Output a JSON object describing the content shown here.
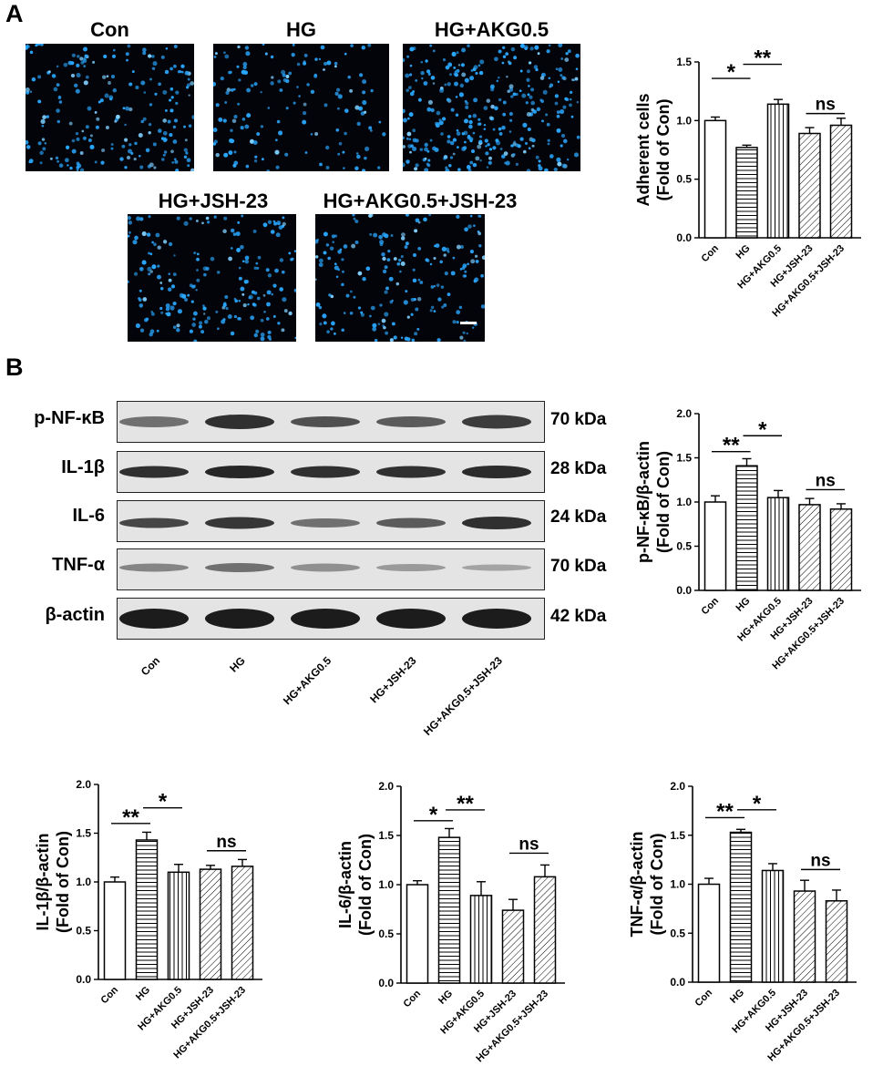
{
  "panel_a": {
    "letter": "A",
    "image_titles": [
      "Con",
      "HG",
      "HG+AKG0.5",
      "HG+JSH-23",
      "HG+AKG0.5+JSH-23"
    ]
  },
  "panel_b": {
    "letter": "B",
    "blot_rows": [
      {
        "protein": "p-NF-κB",
        "kda": "70 kDa"
      },
      {
        "protein": "IL-1β",
        "kda": "28 kDa"
      },
      {
        "protein": "IL-6",
        "kda": "24 kDa"
      },
      {
        "protein": "TNF-α",
        "kda": "70 kDa"
      },
      {
        "protein": "β-actin",
        "kda": "42 kDa"
      }
    ],
    "lane_labels": [
      "Con",
      "HG",
      "HG+AKG0.5",
      "HG+JSH-23",
      "HG+AKG0.5+JSH-23"
    ]
  },
  "colors": {
    "micro_bg": "#03030a",
    "nuclei": "#2aa8ff",
    "bar_stroke": "#000000",
    "bar_fill": "#ffffff"
  },
  "chart_data": [
    {
      "id": "adherent",
      "type": "bar",
      "categories": [
        "Con",
        "HG",
        "HG+AKG0.5",
        "HG+JSH-23",
        "HG+AKG0.5+JSH-23"
      ],
      "values": [
        1.0,
        0.77,
        1.14,
        0.89,
        0.96
      ],
      "errors": [
        0.03,
        0.02,
        0.04,
        0.05,
        0.06
      ],
      "patterns": [
        "none",
        "horizontal",
        "vertical",
        "diagonal",
        "diagonal"
      ],
      "ylabel": [
        "Adherent cells",
        "(Fold of Con)"
      ],
      "ylim": [
        0,
        1.5
      ],
      "yticks": [
        "0.0",
        "0.5",
        "1.0",
        "1.5"
      ],
      "annotations": [
        {
          "text": "*",
          "from": 0,
          "to": 1,
          "y": 1.36
        },
        {
          "text": "**",
          "from": 1,
          "to": 2,
          "y": 1.48
        },
        {
          "text": "ns",
          "from": 3,
          "to": 4,
          "y": 1.06
        }
      ]
    },
    {
      "id": "pnfkb",
      "type": "bar",
      "categories": [
        "Con",
        "HG",
        "HG+AKG0.5",
        "HG+JSH-23",
        "HG+AKG0.5+JSH-23"
      ],
      "values": [
        1.0,
        1.41,
        1.05,
        0.97,
        0.92
      ],
      "errors": [
        0.07,
        0.08,
        0.08,
        0.07,
        0.06
      ],
      "patterns": [
        "none",
        "horizontal",
        "vertical",
        "diagonal",
        "diagonal"
      ],
      "ylabel": [
        "p-NF-κB/β-actin",
        "(Fold of Con)"
      ],
      "ylim": [
        0,
        2.0
      ],
      "yticks": [
        "0.0",
        "0.5",
        "1.0",
        "1.5",
        "2.0"
      ],
      "annotations": [
        {
          "text": "**",
          "from": 0,
          "to": 1,
          "y": 1.57
        },
        {
          "text": "*",
          "from": 1,
          "to": 2,
          "y": 1.75
        },
        {
          "text": "ns",
          "from": 3,
          "to": 4,
          "y": 1.14
        }
      ]
    },
    {
      "id": "il1b",
      "type": "bar",
      "categories": [
        "Con",
        "HG",
        "HG+AKG0.5",
        "HG+JSH-23",
        "HG+AKG0.5+JSH-23"
      ],
      "values": [
        1.0,
        1.43,
        1.1,
        1.13,
        1.16
      ],
      "errors": [
        0.05,
        0.08,
        0.08,
        0.04,
        0.07
      ],
      "patterns": [
        "none",
        "horizontal",
        "vertical",
        "diagonal",
        "diagonal"
      ],
      "ylabel": [
        "IL-1β/β-actin",
        "(Fold of Con)"
      ],
      "ylim": [
        0,
        2.0
      ],
      "yticks": [
        "0.0",
        "0.5",
        "1.0",
        "1.5",
        "2.0"
      ],
      "annotations": [
        {
          "text": "**",
          "from": 0,
          "to": 1,
          "y": 1.6
        },
        {
          "text": "*",
          "from": 1,
          "to": 2,
          "y": 1.76
        },
        {
          "text": "ns",
          "from": 3,
          "to": 4,
          "y": 1.32
        }
      ]
    },
    {
      "id": "il6",
      "type": "bar",
      "categories": [
        "Con",
        "HG",
        "HG+AKG0.5",
        "HG+JSH-23",
        "HG+AKG0.5+JSH-23"
      ],
      "values": [
        1.0,
        1.48,
        0.89,
        0.74,
        1.08
      ],
      "errors": [
        0.04,
        0.09,
        0.14,
        0.11,
        0.12
      ],
      "patterns": [
        "none",
        "horizontal",
        "vertical",
        "diagonal",
        "diagonal"
      ],
      "ylabel": [
        "IL-6/β-actin",
        "(Fold of Con)"
      ],
      "ylim": [
        0,
        2.0
      ],
      "yticks": [
        "0.0",
        "0.5",
        "1.0",
        "1.5",
        "2.0"
      ],
      "annotations": [
        {
          "text": "*",
          "from": 0,
          "to": 1,
          "y": 1.65
        },
        {
          "text": "**",
          "from": 1,
          "to": 2,
          "y": 1.76
        },
        {
          "text": "ns",
          "from": 3,
          "to": 4,
          "y": 1.32
        }
      ]
    },
    {
      "id": "tnfa",
      "type": "bar",
      "categories": [
        "Con",
        "HG",
        "HG+AKG0.5",
        "HG+JSH-23",
        "HG+AKG0.5+JSH-23"
      ],
      "values": [
        1.0,
        1.53,
        1.14,
        0.93,
        0.83
      ],
      "errors": [
        0.06,
        0.03,
        0.07,
        0.11,
        0.11
      ],
      "patterns": [
        "none",
        "horizontal",
        "vertical",
        "diagonal",
        "diagonal"
      ],
      "ylabel": [
        "TNF-α/β-actin",
        "(Fold of Con)"
      ],
      "ylim": [
        0,
        2.0
      ],
      "yticks": [
        "0.0",
        "0.5",
        "1.0",
        "1.5",
        "2.0"
      ],
      "annotations": [
        {
          "text": "**",
          "from": 0,
          "to": 1,
          "y": 1.68
        },
        {
          "text": "*",
          "from": 1,
          "to": 2,
          "y": 1.76
        },
        {
          "text": "ns",
          "from": 3,
          "to": 4,
          "y": 1.15
        }
      ]
    }
  ]
}
